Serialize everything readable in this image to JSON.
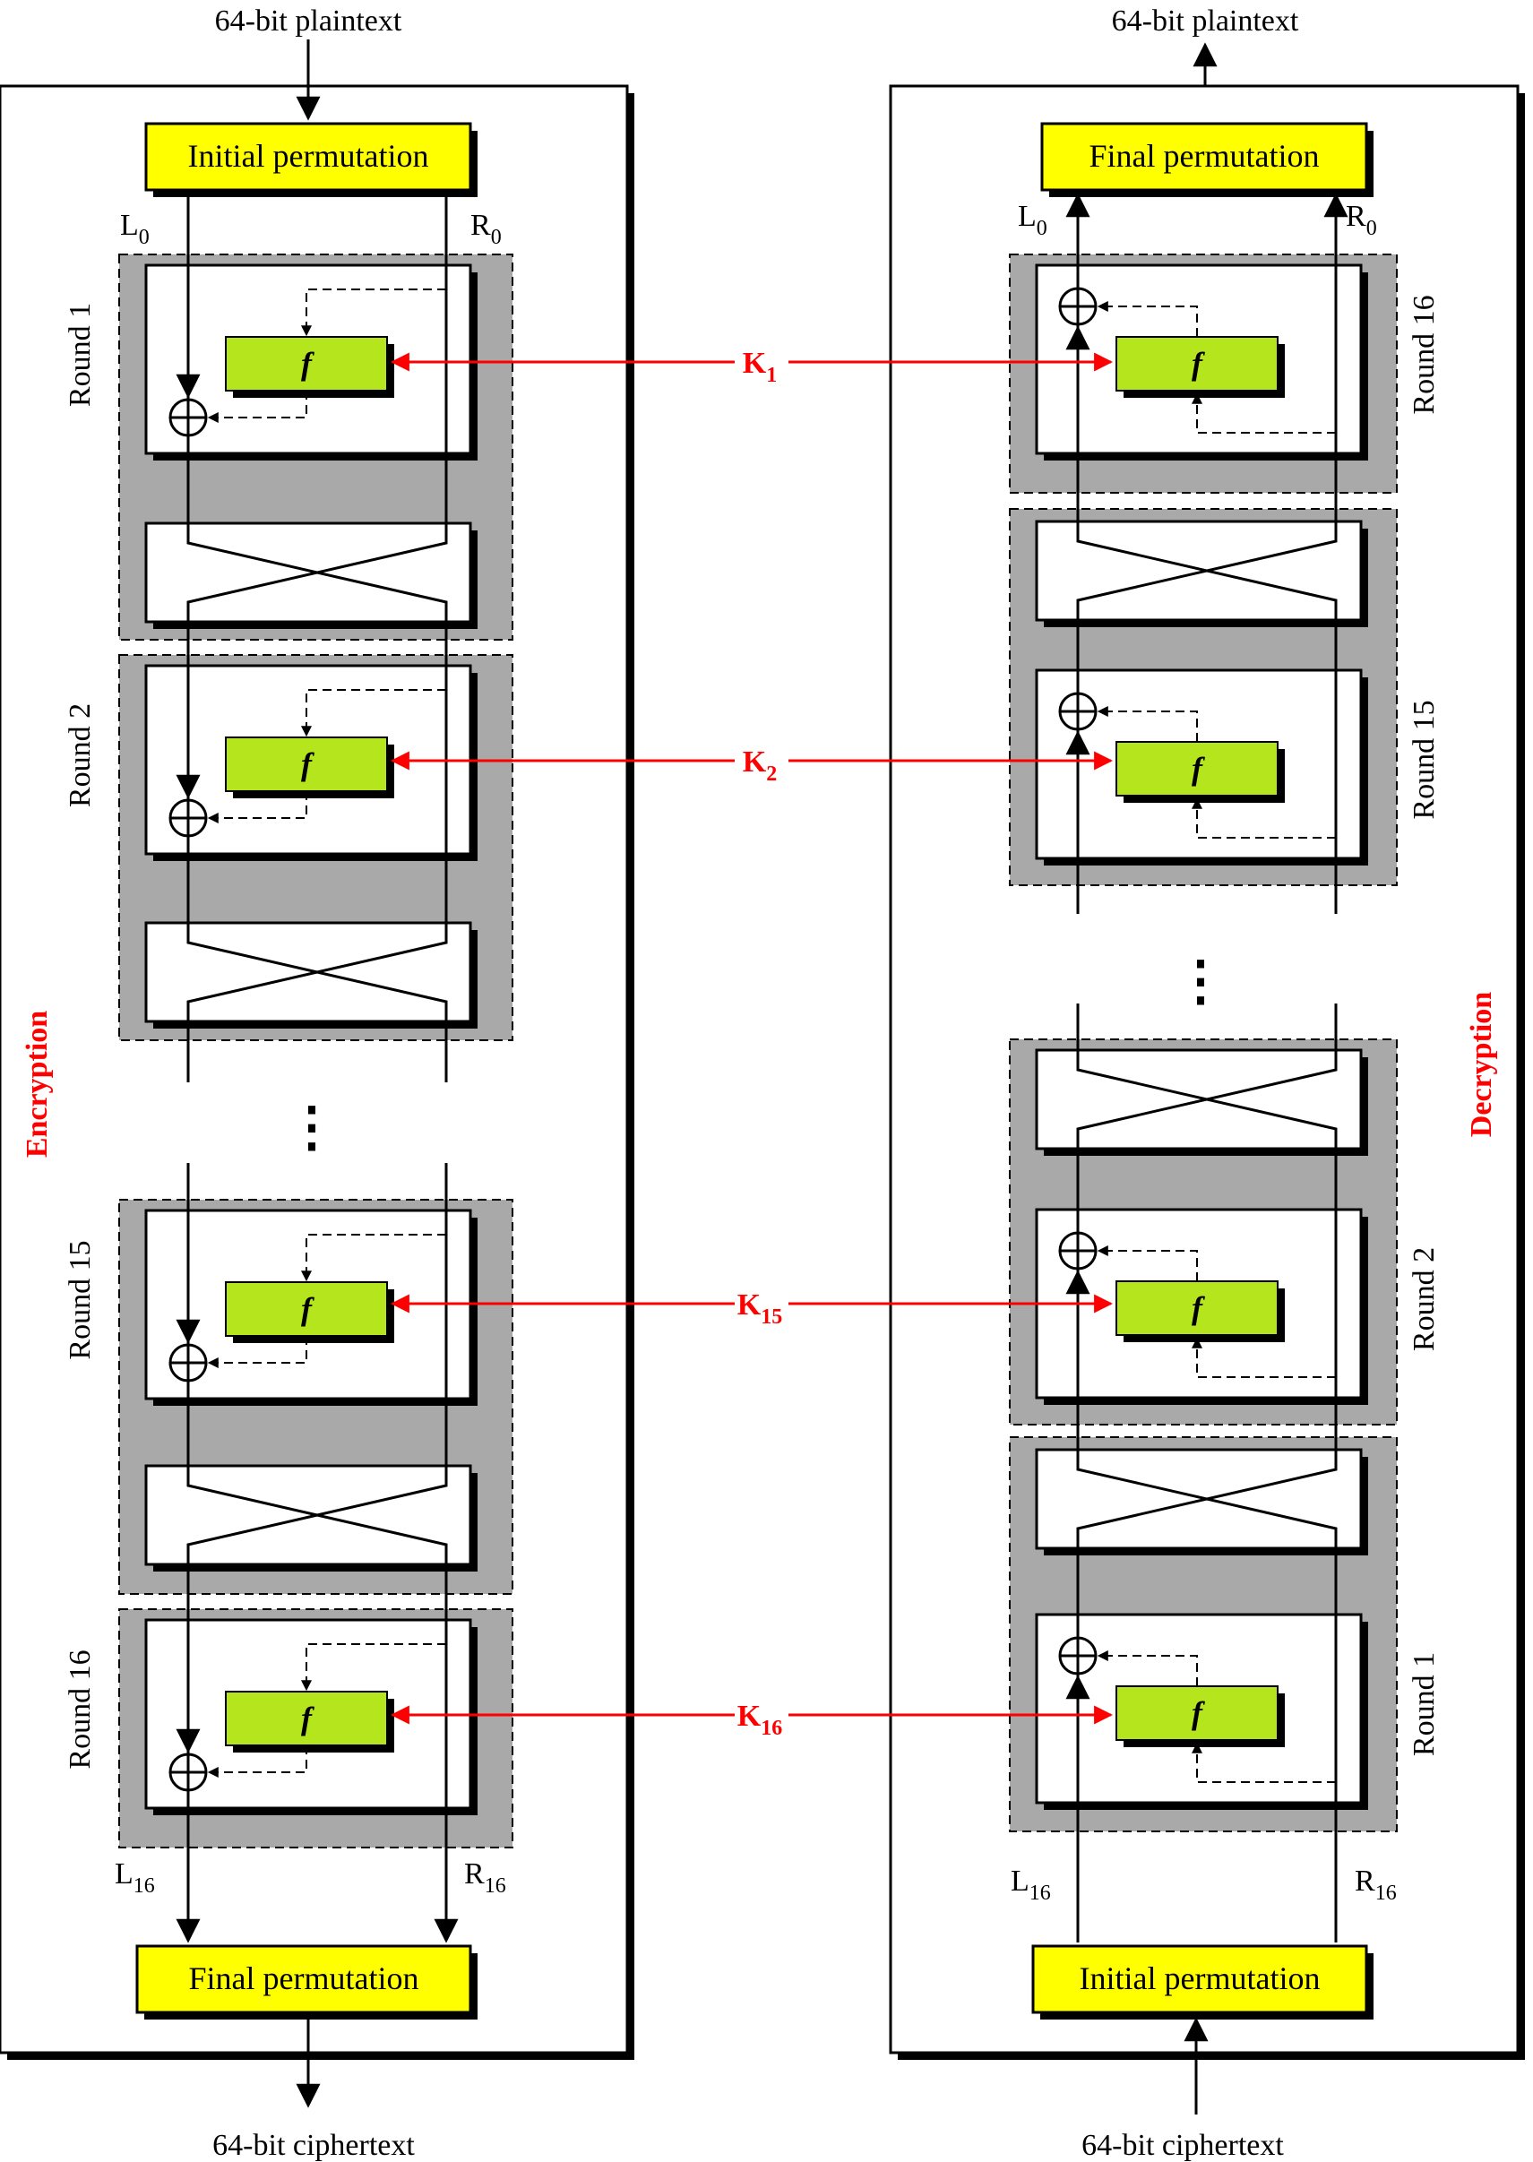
{
  "encryption": {
    "input_label": "64-bit plaintext",
    "output_label": "64-bit ciphertext",
    "initial_permutation": "Initial permutation",
    "final_permutation": "Final permutation",
    "side_label": "Encryption",
    "left_start": "L",
    "left_start_sub": "0",
    "right_start": "R",
    "right_start_sub": "0",
    "left_end": "L",
    "left_end_sub": "16",
    "right_end": "R",
    "right_end_sub": "16",
    "rounds": [
      "Round 1",
      "Round 2",
      "Round 15",
      "Round 16"
    ],
    "ellipsis": "⋮"
  },
  "decryption": {
    "input_label": "64-bit ciphertext",
    "output_label": "64-bit plaintext",
    "initial_permutation": "Initial permutation",
    "final_permutation": "Final permutation",
    "side_label": "Decryption",
    "left_start": "L",
    "left_start_sub": "16",
    "right_start": "R",
    "right_start_sub": "16",
    "left_end": "L",
    "left_end_sub": "0",
    "right_end": "R",
    "right_end_sub": "0",
    "rounds": [
      "Round 16",
      "Round 15",
      "Round 2",
      "Round 1"
    ],
    "ellipsis": "⋮"
  },
  "function_label": "f",
  "keys": [
    {
      "base": "K",
      "sub": "1"
    },
    {
      "base": "K",
      "sub": "2"
    },
    {
      "base": "K",
      "sub": "15"
    },
    {
      "base": "K",
      "sub": "16"
    }
  ],
  "colors": {
    "permutation_fill": "#ffff00",
    "function_fill": "#b5e61d",
    "round_bg": "#a9a9a9",
    "key_arrow": "#ff0000"
  }
}
